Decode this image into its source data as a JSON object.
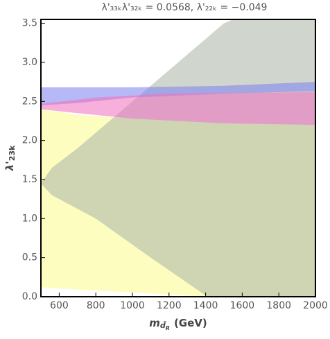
{
  "chart_data": {
    "type": "region",
    "title": "λ'₃₃ₖλ'₃₂ₖ = 0.0568, λ'₂₂ₖ = −0.049",
    "ylabel": [
      "λ'",
      "23k"
    ],
    "xlabel": [
      "m",
      "d̃",
      "R",
      "(GeV)"
    ],
    "xlim": [
      500,
      2000
    ],
    "ylim": [
      0,
      3.55
    ],
    "xticks": [
      600,
      800,
      1000,
      1200,
      1400,
      1600,
      1800,
      2000
    ],
    "yticks": [
      {
        "value": 0,
        "label": "0.0"
      },
      {
        "value": 0.5,
        "label": "0.5"
      },
      {
        "value": 1,
        "label": "1.0"
      },
      {
        "value": 1.5,
        "label": "1.5"
      },
      {
        "value": 2,
        "label": "2.0"
      },
      {
        "value": 2.5,
        "label": "2.5"
      },
      {
        "value": 3,
        "label": "3.0"
      },
      {
        "value": 3.5,
        "label": "3.5"
      }
    ],
    "series": [
      {
        "color": "#fdfdc0",
        "x": [
          500,
          1400,
          2000,
          2000,
          1500,
          1000,
          700,
          500
        ],
        "y": [
          0.12,
          0,
          0,
          2.2,
          2.22,
          2.28,
          2.33,
          2.4
        ]
      },
      {
        "color": "#a9b2a6",
        "x": [
          1410,
          1100,
          800,
          560,
          500,
          560,
          700,
          900,
          1050,
          1200,
          1350,
          1500,
          1550,
          2000,
          2000
        ],
        "y": [
          0,
          0.5,
          1.0,
          1.3,
          1.45,
          1.65,
          1.9,
          2.3,
          2.6,
          2.9,
          3.2,
          3.5,
          3.55,
          3.55,
          0
        ]
      },
      {
        "color": "#7b7ff0",
        "x": [
          500,
          1000,
          1500,
          2000,
          2000,
          1500,
          1000,
          700,
          500
        ],
        "y": [
          2.68,
          2.68,
          2.7,
          2.75,
          2.63,
          2.6,
          2.55,
          2.48,
          2.45
        ]
      },
      {
        "color": "#f070c0",
        "x": [
          500,
          800,
          1200,
          2000,
          2000,
          1500,
          1000,
          700,
          500
        ],
        "y": [
          2.47,
          2.55,
          2.6,
          2.62,
          2.2,
          2.22,
          2.28,
          2.35,
          2.4
        ]
      }
    ]
  }
}
